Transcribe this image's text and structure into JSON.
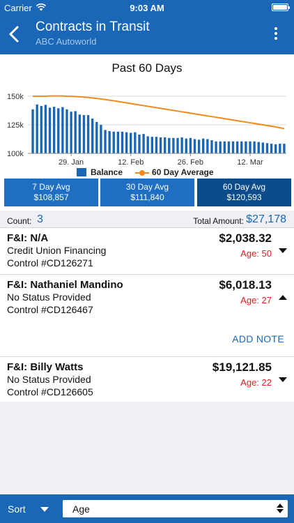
{
  "status_bar": {
    "carrier": "Carrier",
    "time": "9:03 AM",
    "wifi_icon": "wifi-icon",
    "battery_icon": "battery-icon"
  },
  "header": {
    "title": "Contracts in Transit",
    "subtitle": "ABC Autoworld",
    "back_icon": "chevron-left-icon",
    "more_icon": "more-vertical-icon"
  },
  "chart_data": {
    "type": "bar",
    "title": "Past 60 Days",
    "xlabel": "",
    "ylabel": "",
    "ylim": [
      100000,
      150000
    ],
    "yticks": [
      "150k",
      "125k",
      "100k"
    ],
    "xticks": [
      {
        "label": "29. Jan",
        "index": 9
      },
      {
        "label": "12. Feb",
        "index": 23
      },
      {
        "label": "26. Feb",
        "index": 37
      },
      {
        "label": "12. Mar",
        "index": 51
      }
    ],
    "grid": true,
    "legend": "bottom",
    "series": [
      {
        "name": "Balance",
        "type": "bar",
        "color": "#1967b6",
        "values": [
          138500,
          142800,
          141500,
          142500,
          140000,
          140800,
          139500,
          140500,
          138500,
          136500,
          137000,
          134000,
          133500,
          133500,
          130500,
          127500,
          125000,
          120500,
          119500,
          119000,
          119000,
          119000,
          118500,
          118000,
          118500,
          116500,
          117000,
          115000,
          114500,
          114500,
          114000,
          114000,
          113500,
          113500,
          113500,
          114000,
          113000,
          113500,
          112500,
          112000,
          113000,
          112500,
          111500,
          110500,
          110500,
          110500,
          110500,
          110500,
          110500,
          110500,
          110500,
          110500,
          110500,
          110000,
          109500,
          109000,
          108500,
          108000,
          108500,
          108500
        ]
      },
      {
        "name": "60 Day Average",
        "type": "line",
        "color": "#f08a1c",
        "values": [
          150000,
          150000,
          150000,
          150000,
          150200,
          150200,
          150200,
          150200,
          150000,
          149900,
          149800,
          149500,
          149200,
          148900,
          148500,
          148100,
          147600,
          147100,
          146600,
          146000,
          145400,
          144800,
          144200,
          143600,
          143000,
          142400,
          141800,
          141200,
          140600,
          140000,
          139400,
          138800,
          138200,
          137600,
          137000,
          136400,
          135800,
          135200,
          134600,
          134000,
          133400,
          132800,
          132200,
          131600,
          131000,
          130400,
          129800,
          129200,
          128600,
          128000,
          127400,
          126800,
          126200,
          125600,
          125000,
          124400,
          123800,
          123200,
          122400,
          121600
        ]
      }
    ]
  },
  "legend": {
    "balance": "Balance",
    "average": "60 Day Average"
  },
  "avg_tabs": [
    {
      "label": "7 Day Avg",
      "value": "$108,857"
    },
    {
      "label": "30 Day Avg",
      "value": "$111,840"
    },
    {
      "label": "60 Day Avg",
      "value": "$120,593"
    }
  ],
  "summary": {
    "count_label": "Count:",
    "count": "3",
    "total_label": "Total Amount:",
    "total": "$27,178"
  },
  "contracts": [
    {
      "fi": "F&I: N/A",
      "status": "Credit Union Financing",
      "control": "Control #CD126271",
      "amount": "$2,038.32",
      "age": "Age: 50",
      "expanded": false
    },
    {
      "fi": "F&I: Nathaniel Mandino",
      "status": "No Status Provided",
      "control": "Control #CD126467",
      "amount": "$6,018.13",
      "age": "Age: 27",
      "expanded": true,
      "action": "ADD NOTE"
    },
    {
      "fi": "F&I: Billy Watts",
      "status": "No Status Provided",
      "control": "Control #CD126605",
      "amount": "$19,121.85",
      "age": "Age: 22",
      "expanded": false
    }
  ],
  "footer": {
    "sort_label": "Sort",
    "sort_value": "Age"
  },
  "colors": {
    "primary": "#1967b6",
    "active_tab": "#0d4c8b",
    "age_red": "#e02020",
    "average_line": "#f08a1c"
  }
}
